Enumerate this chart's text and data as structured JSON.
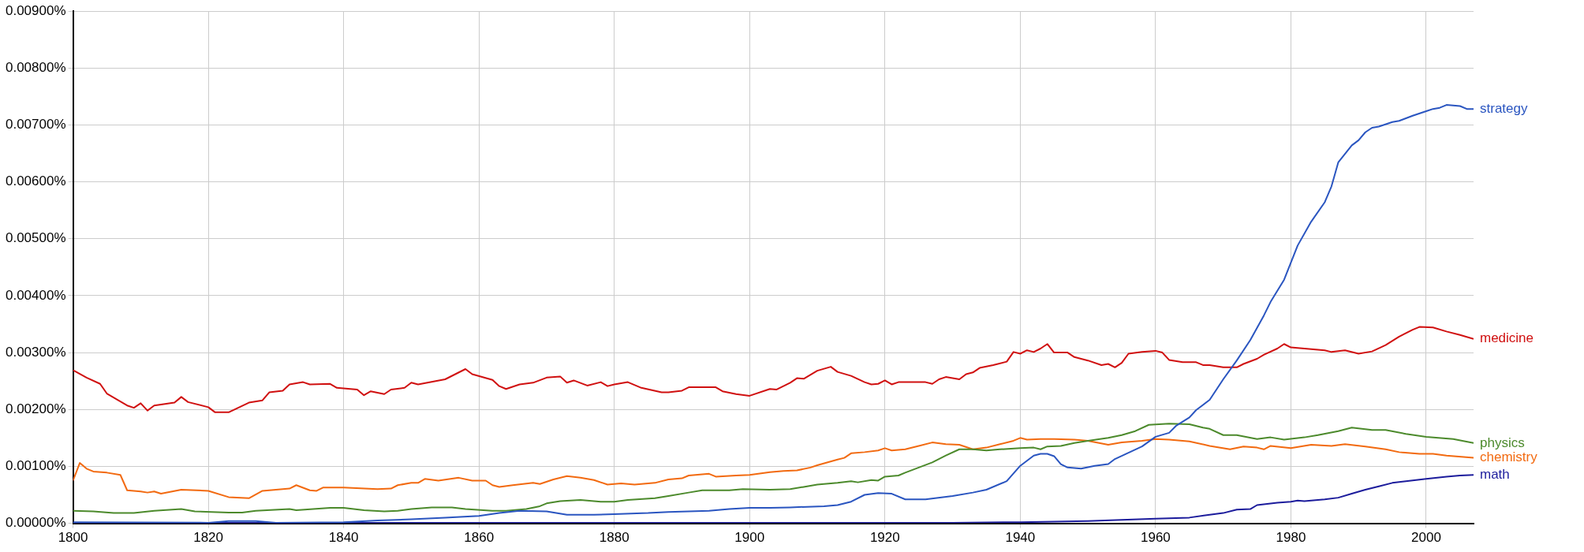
{
  "chart_data": {
    "type": "line",
    "xlim": [
      1800,
      2007
    ],
    "xticks": [
      1800,
      1820,
      1840,
      1860,
      1880,
      1900,
      1920,
      1940,
      1960,
      1980,
      2000
    ],
    "ylim": [
      0,
      0.009
    ],
    "yticks": [
      {
        "value": 0,
        "label": "0.00000%"
      },
      {
        "value": 0.001,
        "label": "0.00100%"
      },
      {
        "value": 0.002,
        "label": "0.00200%"
      },
      {
        "value": 0.003,
        "label": "0.00300%"
      },
      {
        "value": 0.004,
        "label": "0.00400%"
      },
      {
        "value": 0.005,
        "label": "0.00500%"
      },
      {
        "value": 0.006,
        "label": "0.00600%"
      },
      {
        "value": 0.007,
        "label": "0.00700%"
      },
      {
        "value": 0.008,
        "label": "0.00800%"
      },
      {
        "value": 0.009,
        "label": "0.00900%"
      }
    ],
    "grid": true,
    "legend": false,
    "marker": "none",
    "line_style": "solid",
    "series": [
      {
        "name": "strategy",
        "color": "#2a55c0",
        "x": [
          1800,
          1820,
          1823,
          1827,
          1830,
          1840,
          1845,
          1850,
          1855,
          1860,
          1863,
          1866,
          1870,
          1873,
          1877,
          1880,
          1885,
          1888,
          1894,
          1897,
          1900,
          1903,
          1906,
          1911,
          1913,
          1915,
          1917,
          1919,
          1921,
          1923,
          1926,
          1930,
          1933,
          1935,
          1938,
          1940,
          1942,
          1943,
          1944,
          1945,
          1946,
          1947,
          1949,
          1951,
          1953,
          1954,
          1956,
          1958,
          1960,
          1962,
          1963,
          1965,
          1966,
          1968,
          1970,
          1972,
          1974,
          1976,
          1977,
          1979,
          1981,
          1983,
          1985,
          1986,
          1987,
          1989,
          1990,
          1991,
          1992,
          1993,
          1995,
          1996,
          1998,
          2000,
          2001,
          2002,
          2003,
          2005,
          2006,
          2007
        ],
        "values": [
          2e-05,
          1e-05,
          4e-05,
          4e-05,
          1e-05,
          2e-05,
          5e-05,
          7e-05,
          0.0001,
          0.00013,
          0.00018,
          0.00022,
          0.00021,
          0.00015,
          0.00015,
          0.00016,
          0.00018,
          0.0002,
          0.00022,
          0.00025,
          0.00027,
          0.00027,
          0.00028,
          0.0003,
          0.00032,
          0.00038,
          0.0005,
          0.00053,
          0.00052,
          0.00042,
          0.00042,
          0.00048,
          0.00054,
          0.00059,
          0.00074,
          0.00101,
          0.00119,
          0.00122,
          0.00122,
          0.00118,
          0.00104,
          0.00098,
          0.00096,
          0.00101,
          0.00104,
          0.00113,
          0.00124,
          0.00135,
          0.00152,
          0.00159,
          0.00171,
          0.00186,
          0.00199,
          0.00217,
          0.00253,
          0.00286,
          0.00322,
          0.00365,
          0.00389,
          0.00428,
          0.00488,
          0.0053,
          0.00564,
          0.00592,
          0.00634,
          0.00664,
          0.00673,
          0.00687,
          0.00695,
          0.00697,
          0.00705,
          0.00707,
          0.00716,
          0.00724,
          0.00728,
          0.0073,
          0.00735,
          0.00733,
          0.00728,
          0.00728
        ]
      },
      {
        "name": "medicine",
        "color": "#d01010",
        "x": [
          1800,
          1802,
          1804,
          1805,
          1808,
          1809,
          1810,
          1811,
          1812,
          1815,
          1816,
          1817,
          1820,
          1821,
          1823,
          1826,
          1828,
          1829,
          1831,
          1832,
          1834,
          1835,
          1838,
          1839,
          1842,
          1843,
          1844,
          1846,
          1847,
          1849,
          1850,
          1851,
          1855,
          1858,
          1859,
          1862,
          1863,
          1864,
          1866,
          1868,
          1870,
          1872,
          1873,
          1874,
          1876,
          1878,
          1879,
          1880,
          1882,
          1884,
          1887,
          1888,
          1890,
          1891,
          1895,
          1896,
          1898,
          1900,
          1903,
          1904,
          1906,
          1907,
          1908,
          1910,
          1912,
          1913,
          1915,
          1917,
          1918,
          1919,
          1920,
          1921,
          1922,
          1926,
          1927,
          1928,
          1929,
          1931,
          1932,
          1933,
          1934,
          1936,
          1938,
          1939,
          1940,
          1941,
          1942,
          1943,
          1944,
          1945,
          1947,
          1948,
          1950,
          1952,
          1953,
          1954,
          1955,
          1956,
          1958,
          1960,
          1961,
          1962,
          1964,
          1966,
          1967,
          1968,
          1970,
          1972,
          1973,
          1975,
          1976,
          1978,
          1979,
          1980,
          1982,
          1985,
          1986,
          1988,
          1990,
          1992,
          1994,
          1996,
          1998,
          1999,
          2001,
          2003,
          2005,
          2007
        ],
        "values": [
          0.00269,
          0.00256,
          0.00245,
          0.00228,
          0.00207,
          0.00203,
          0.00211,
          0.00198,
          0.00207,
          0.00212,
          0.00222,
          0.00213,
          0.00204,
          0.00195,
          0.00195,
          0.00212,
          0.00216,
          0.0023,
          0.00233,
          0.00244,
          0.00248,
          0.00244,
          0.00245,
          0.00238,
          0.00235,
          0.00225,
          0.00232,
          0.00227,
          0.00235,
          0.00238,
          0.00247,
          0.00244,
          0.00253,
          0.00271,
          0.00262,
          0.00252,
          0.00241,
          0.00236,
          0.00244,
          0.00247,
          0.00256,
          0.00258,
          0.00247,
          0.00251,
          0.00242,
          0.00248,
          0.00241,
          0.00244,
          0.00248,
          0.00238,
          0.0023,
          0.0023,
          0.00233,
          0.00239,
          0.00239,
          0.00232,
          0.00227,
          0.00224,
          0.00236,
          0.00235,
          0.00247,
          0.00255,
          0.00254,
          0.00268,
          0.00275,
          0.00266,
          0.00259,
          0.00248,
          0.00244,
          0.00245,
          0.00251,
          0.00244,
          0.00248,
          0.00248,
          0.00245,
          0.00253,
          0.00257,
          0.00253,
          0.00262,
          0.00265,
          0.00273,
          0.00278,
          0.00284,
          0.00301,
          0.00298,
          0.00304,
          0.00301,
          0.00307,
          0.00315,
          0.003,
          0.003,
          0.00292,
          0.00286,
          0.00278,
          0.0028,
          0.00274,
          0.00282,
          0.00298,
          0.00301,
          0.00303,
          0.003,
          0.00287,
          0.00283,
          0.00283,
          0.00278,
          0.00278,
          0.00274,
          0.00274,
          0.0028,
          0.00289,
          0.00296,
          0.00307,
          0.00315,
          0.00309,
          0.00307,
          0.00304,
          0.00301,
          0.00304,
          0.00298,
          0.00302,
          0.00313,
          0.00328,
          0.0034,
          0.00345,
          0.00344,
          0.00337,
          0.00331,
          0.00324
        ]
      },
      {
        "name": "physics",
        "color": "#4c8a2c",
        "x": [
          1800,
          1803,
          1806,
          1809,
          1812,
          1816,
          1818,
          1823,
          1825,
          1827,
          1832,
          1833,
          1838,
          1840,
          1843,
          1846,
          1848,
          1850,
          1853,
          1856,
          1858,
          1862,
          1864,
          1867,
          1869,
          1870,
          1872,
          1875,
          1878,
          1880,
          1882,
          1886,
          1888,
          1891,
          1893,
          1897,
          1899,
          1903,
          1906,
          1908,
          1910,
          1913,
          1915,
          1916,
          1918,
          1919,
          1920,
          1922,
          1923,
          1925,
          1927,
          1929,
          1931,
          1933,
          1935,
          1937,
          1940,
          1942,
          1943,
          1944,
          1946,
          1948,
          1950,
          1953,
          1955,
          1957,
          1959,
          1962,
          1965,
          1967,
          1968,
          1970,
          1972,
          1975,
          1977,
          1979,
          1982,
          1984,
          1987,
          1989,
          1992,
          1994,
          1997,
          2000,
          2004,
          2007
        ],
        "values": [
          0.00022,
          0.00021,
          0.00018,
          0.00018,
          0.00022,
          0.00025,
          0.00021,
          0.00019,
          0.00019,
          0.00022,
          0.00025,
          0.00023,
          0.00027,
          0.00027,
          0.00023,
          0.00021,
          0.00022,
          0.00025,
          0.00028,
          0.00028,
          0.00025,
          0.00022,
          0.00022,
          0.00025,
          0.0003,
          0.00035,
          0.00039,
          0.00041,
          0.00038,
          0.00038,
          0.00041,
          0.00044,
          0.00048,
          0.00054,
          0.00058,
          0.00058,
          0.0006,
          0.00059,
          0.0006,
          0.00064,
          0.00068,
          0.00071,
          0.00074,
          0.00072,
          0.00076,
          0.00075,
          0.00082,
          0.00084,
          0.00089,
          0.00098,
          0.00107,
          0.00119,
          0.0013,
          0.0013,
          0.00128,
          0.0013,
          0.00132,
          0.00133,
          0.0013,
          0.00135,
          0.00136,
          0.00141,
          0.00145,
          0.0015,
          0.00155,
          0.00162,
          0.00173,
          0.00175,
          0.00174,
          0.00168,
          0.00166,
          0.00155,
          0.00155,
          0.00148,
          0.00151,
          0.00147,
          0.00151,
          0.00155,
          0.00162,
          0.00168,
          0.00164,
          0.00164,
          0.00157,
          0.00152,
          0.00148,
          0.00141
        ]
      },
      {
        "name": "chemistry",
        "color": "#f26a10",
        "x": [
          1800,
          1801,
          1802,
          1803,
          1805,
          1807,
          1808,
          1810,
          1811,
          1812,
          1813,
          1816,
          1820,
          1823,
          1826,
          1828,
          1832,
          1833,
          1835,
          1836,
          1837,
          1840,
          1845,
          1847,
          1848,
          1850,
          1851,
          1852,
          1854,
          1857,
          1859,
          1861,
          1862,
          1863,
          1865,
          1868,
          1869,
          1871,
          1873,
          1875,
          1877,
          1879,
          1881,
          1883,
          1886,
          1888,
          1890,
          1891,
          1894,
          1895,
          1898,
          1900,
          1903,
          1905,
          1907,
          1909,
          1910,
          1913,
          1914,
          1915,
          1917,
          1919,
          1920,
          1921,
          1923,
          1925,
          1927,
          1929,
          1931,
          1933,
          1935,
          1937,
          1939,
          1940,
          1941,
          1943,
          1945,
          1948,
          1950,
          1953,
          1955,
          1958,
          1960,
          1962,
          1965,
          1968,
          1971,
          1973,
          1975,
          1976,
          1977,
          1980,
          1983,
          1986,
          1988,
          1991,
          1994,
          1996,
          1999,
          2001,
          2003,
          2007
        ],
        "values": [
          0.00075,
          0.00106,
          0.00096,
          0.00091,
          0.00089,
          0.00085,
          0.00058,
          0.00056,
          0.00054,
          0.00056,
          0.00052,
          0.00059,
          0.00057,
          0.00046,
          0.00044,
          0.00057,
          0.00061,
          0.00067,
          0.00058,
          0.00057,
          0.00063,
          0.00063,
          0.0006,
          0.00061,
          0.00067,
          0.00071,
          0.00071,
          0.00078,
          0.00075,
          0.0008,
          0.00075,
          0.00075,
          0.00067,
          0.00064,
          0.00067,
          0.00071,
          0.00069,
          0.00077,
          0.00083,
          0.0008,
          0.00076,
          0.00068,
          0.0007,
          0.00068,
          0.00071,
          0.00077,
          0.00079,
          0.00084,
          0.00087,
          0.00082,
          0.00084,
          0.00085,
          0.0009,
          0.00092,
          0.00093,
          0.00098,
          0.00102,
          0.00112,
          0.00115,
          0.00123,
          0.00125,
          0.00128,
          0.00132,
          0.00128,
          0.0013,
          0.00136,
          0.00142,
          0.00139,
          0.00138,
          0.0013,
          0.00133,
          0.00139,
          0.00145,
          0.0015,
          0.00147,
          0.00148,
          0.00148,
          0.00147,
          0.00145,
          0.00138,
          0.00142,
          0.00145,
          0.00148,
          0.00147,
          0.00144,
          0.00136,
          0.0013,
          0.00135,
          0.00133,
          0.0013,
          0.00136,
          0.00132,
          0.00138,
          0.00136,
          0.00139,
          0.00135,
          0.0013,
          0.00125,
          0.00122,
          0.00122,
          0.00119,
          0.00115
        ]
      },
      {
        "name": "math",
        "color": "#1c1c9c",
        "x": [
          1800,
          1900,
          1930,
          1940,
          1950,
          1960,
          1965,
          1968,
          1970,
          1972,
          1974,
          1975,
          1978,
          1980,
          1981,
          1982,
          1985,
          1987,
          1989,
          1991,
          1993,
          1995,
          1997,
          2000,
          2003,
          2005,
          2007
        ],
        "values": [
          1e-05,
          1e-05,
          1e-05,
          2e-05,
          4e-05,
          8e-05,
          0.0001,
          0.00015,
          0.00018,
          0.00024,
          0.00025,
          0.00032,
          0.00036,
          0.00038,
          0.0004,
          0.00039,
          0.00042,
          0.00045,
          0.00052,
          0.00059,
          0.00065,
          0.00071,
          0.00074,
          0.00078,
          0.00082,
          0.00084,
          0.00085
        ]
      }
    ]
  }
}
